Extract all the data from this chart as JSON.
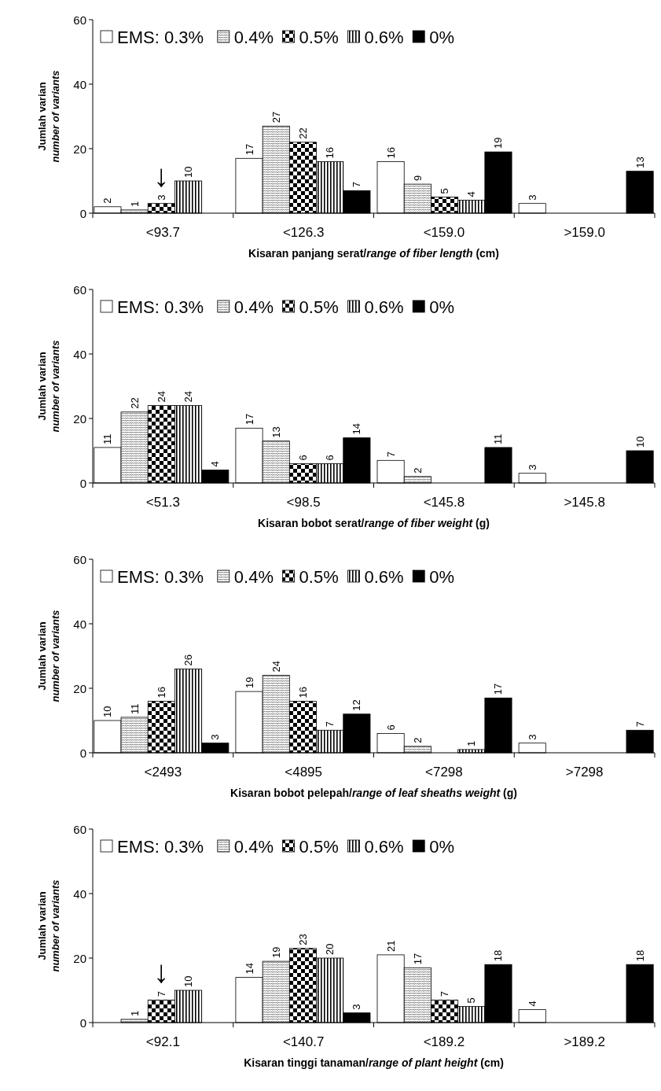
{
  "chart_data": [
    {
      "type": "bar",
      "categories": [
        "<93.7",
        "<126.3",
        "<159.0",
        ">159.0"
      ],
      "xlabel": "Kisaran panjang serat/range of fiber length (cm)",
      "ylabel": "Jumlah varian\nnumber of variants",
      "ylim": [
        0,
        60
      ],
      "yticks": [
        0,
        20,
        40,
        60
      ],
      "legend": "top",
      "annotations": [
        {
          "text": "↓",
          "x": "<93.7",
          "y": 3
        }
      ],
      "series": [
        {
          "name": "EMS: 0.3%",
          "color": "#ffffff",
          "values": [
            2,
            17,
            16,
            3
          ],
          "value_labels": [
            "2",
            "17",
            "16",
            "3"
          ]
        },
        {
          "name": "0.4%",
          "color": "#000000",
          "values": [
            1,
            27,
            9,
            0
          ],
          "value_labels": [
            "1",
            "27",
            "9",
            null
          ]
        },
        {
          "name": "0.5%",
          "color": "#000000",
          "values": [
            3,
            22,
            5,
            0
          ],
          "value_labels": [
            "3",
            "22",
            "5",
            null
          ]
        },
        {
          "name": "0.6%",
          "color": "#000000",
          "values": [
            10,
            16,
            4,
            0
          ],
          "value_labels": [
            "10",
            "16",
            "4",
            null
          ]
        },
        {
          "name": "0%",
          "color": "#000000",
          "values": [
            0,
            7,
            19,
            13
          ],
          "value_labels": [
            null,
            "7",
            "19",
            "13"
          ]
        }
      ]
    },
    {
      "type": "bar",
      "categories": [
        "<51.3",
        "<98.5",
        "<145.8",
        ">145.8"
      ],
      "xlabel": "Kisaran bobot serat/range of fiber weight (g)",
      "ylabel": "Jumlah varian\nnumber of variants",
      "ylim": [
        0,
        60
      ],
      "yticks": [
        0,
        20,
        40,
        60
      ],
      "legend": "top",
      "series": [
        {
          "name": "EMS: 0.3%",
          "color": "#ffffff",
          "values": [
            11,
            17,
            7,
            3
          ],
          "value_labels": [
            "11",
            "17",
            "7",
            "3"
          ]
        },
        {
          "name": "0.4%",
          "color": "#000000",
          "values": [
            22,
            13,
            2,
            0
          ],
          "value_labels": [
            "22",
            "13",
            "2",
            null
          ]
        },
        {
          "name": "0.5%",
          "color": "#000000",
          "values": [
            24,
            6,
            0,
            0
          ],
          "value_labels": [
            "24",
            "6",
            null,
            null
          ]
        },
        {
          "name": "0.6%",
          "color": "#000000",
          "values": [
            24,
            6,
            0,
            0
          ],
          "value_labels": [
            "24",
            "6",
            null,
            null
          ]
        },
        {
          "name": "0%",
          "color": "#000000",
          "values": [
            4,
            14,
            11,
            10
          ],
          "value_labels": [
            "4",
            "14",
            "11",
            "10"
          ]
        }
      ]
    },
    {
      "type": "bar",
      "categories": [
        "<2493",
        "<4895",
        "<7298",
        ">7298"
      ],
      "xlabel": "Kisaran bobot pelepah/range of leaf sheaths weight (g)",
      "ylabel": "Jumlah varian\nnumber of variants",
      "ylim": [
        0,
        60
      ],
      "yticks": [
        0,
        20,
        40,
        60
      ],
      "legend": "top",
      "series": [
        {
          "name": "EMS: 0.3%",
          "color": "#ffffff",
          "values": [
            10,
            19,
            6,
            3
          ],
          "value_labels": [
            "10",
            "19",
            "6",
            "3"
          ]
        },
        {
          "name": "0.4%",
          "color": "#000000",
          "values": [
            11,
            24,
            2,
            0
          ],
          "value_labels": [
            "11",
            "24",
            "2",
            null
          ]
        },
        {
          "name": "0.5%",
          "color": "#000000",
          "values": [
            16,
            16,
            0,
            0
          ],
          "value_labels": [
            "16",
            "16",
            null,
            null
          ]
        },
        {
          "name": "0.6%",
          "color": "#000000",
          "values": [
            26,
            7,
            1,
            0
          ],
          "value_labels": [
            "26",
            "7",
            "1",
            null
          ]
        },
        {
          "name": "0%",
          "color": "#000000",
          "values": [
            3,
            12,
            17,
            7
          ],
          "value_labels": [
            "3",
            "12",
            "17",
            "7"
          ]
        }
      ]
    },
    {
      "type": "bar",
      "categories": [
        "<92.1",
        "<140.7",
        "<189.2",
        ">189.2"
      ],
      "xlabel": "Kisaran tinggi tanaman/range of plant height (cm)",
      "ylabel": "Jumlah varian\nnumber of variants",
      "ylim": [
        0,
        60
      ],
      "yticks": [
        0,
        20,
        40,
        60
      ],
      "legend": "top",
      "annotations": [
        {
          "text": "↓",
          "x": "<92.1",
          "y": 7
        }
      ],
      "series": [
        {
          "name": "EMS: 0.3%",
          "color": "#ffffff",
          "values": [
            0,
            14,
            21,
            4
          ],
          "value_labels": [
            null,
            "14",
            "21",
            "4"
          ]
        },
        {
          "name": "0.4%",
          "color": "#000000",
          "values": [
            1,
            19,
            17,
            0
          ],
          "value_labels": [
            "1",
            "19",
            "17",
            null
          ]
        },
        {
          "name": "0.5%",
          "color": "#000000",
          "values": [
            7,
            23,
            7,
            0
          ],
          "value_labels": [
            "7",
            "23",
            "7",
            null
          ]
        },
        {
          "name": "0.6%",
          "color": "#000000",
          "values": [
            10,
            20,
            5,
            0
          ],
          "value_labels": [
            "10",
            "20",
            "5",
            null
          ]
        },
        {
          "name": "0%",
          "color": "#000000",
          "values": [
            0,
            3,
            18,
            18
          ],
          "value_labels": [
            null,
            "3",
            "18",
            "18"
          ]
        }
      ]
    }
  ]
}
